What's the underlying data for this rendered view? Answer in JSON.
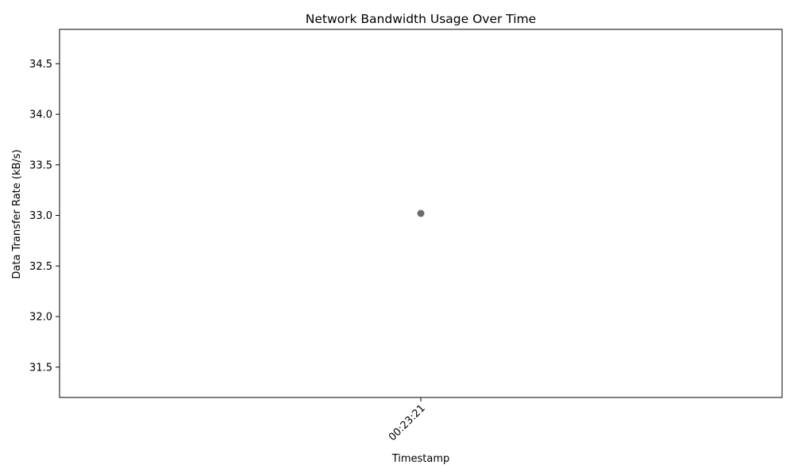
{
  "chart_data": {
    "type": "scatter",
    "title": "Network Bandwidth Usage Over Time",
    "xlabel": "Timestamp",
    "ylabel": "Data Transfer Rate (kB/s)",
    "categories": [
      "00:23:21"
    ],
    "series": [
      {
        "values": [
          33.02
        ],
        "color": "#6e6a6e"
      }
    ],
    "ylim": [
      31.2,
      34.84
    ],
    "yticks": [
      31.5,
      32.0,
      32.5,
      33.0,
      33.5,
      34.0,
      34.5
    ],
    "ytick_labels": [
      "31.5",
      "32.0",
      "32.5",
      "33.0",
      "33.5",
      "34.0",
      "34.5"
    ],
    "grid": false,
    "legend": "none"
  }
}
